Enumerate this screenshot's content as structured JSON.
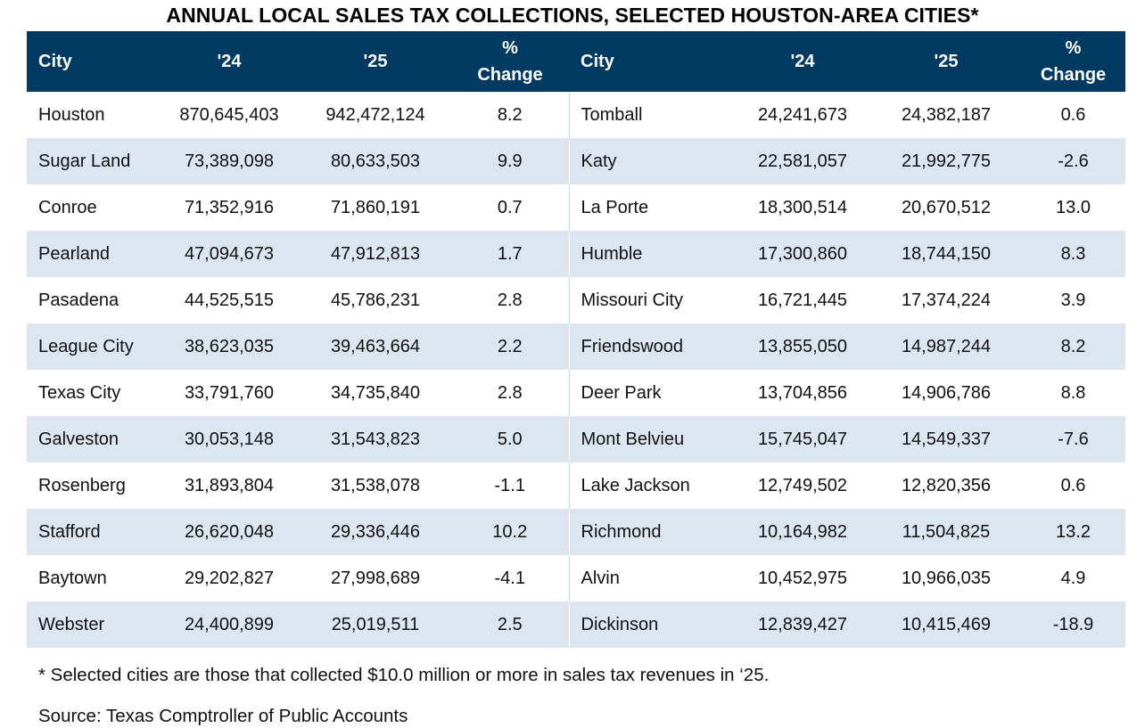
{
  "title": "ANNUAL LOCAL SALES TAX COLLECTIONS, SELECTED HOUSTON-AREA CITIES*",
  "headers": {
    "city": "City",
    "y24": "'24",
    "y25": "'25",
    "pct_line1": "%",
    "pct_line2": "Change"
  },
  "rows": [
    {
      "left": {
        "city": "Houston",
        "y24": "870,645,403",
        "y25": "942,472,124",
        "pct": "8.2"
      },
      "right": {
        "city": "Tomball",
        "y24": "24,241,673",
        "y25": "24,382,187",
        "pct": "0.6"
      }
    },
    {
      "left": {
        "city": "Sugar Land",
        "y24": "73,389,098",
        "y25": "80,633,503",
        "pct": "9.9"
      },
      "right": {
        "city": "Katy",
        "y24": "22,581,057",
        "y25": "21,992,775",
        "pct": "-2.6"
      }
    },
    {
      "left": {
        "city": "Conroe",
        "y24": "71,352,916",
        "y25": "71,860,191",
        "pct": "0.7"
      },
      "right": {
        "city": "La Porte",
        "y24": "18,300,514",
        "y25": "20,670,512",
        "pct": "13.0"
      }
    },
    {
      "left": {
        "city": "Pearland",
        "y24": "47,094,673",
        "y25": "47,912,813",
        "pct": "1.7"
      },
      "right": {
        "city": "Humble",
        "y24": "17,300,860",
        "y25": "18,744,150",
        "pct": "8.3"
      }
    },
    {
      "left": {
        "city": "Pasadena",
        "y24": "44,525,515",
        "y25": "45,786,231",
        "pct": "2.8"
      },
      "right": {
        "city": "Missouri City",
        "y24": "16,721,445",
        "y25": "17,374,224",
        "pct": "3.9"
      }
    },
    {
      "left": {
        "city": "League City",
        "y24": "38,623,035",
        "y25": "39,463,664",
        "pct": "2.2"
      },
      "right": {
        "city": "Friendswood",
        "y24": "13,855,050",
        "y25": "14,987,244",
        "pct": "8.2"
      }
    },
    {
      "left": {
        "city": "Texas City",
        "y24": "33,791,760",
        "y25": "34,735,840",
        "pct": "2.8"
      },
      "right": {
        "city": "Deer Park",
        "y24": "13,704,856",
        "y25": "14,906,786",
        "pct": "8.8"
      }
    },
    {
      "left": {
        "city": "Galveston",
        "y24": "30,053,148",
        "y25": "31,543,823",
        "pct": "5.0"
      },
      "right": {
        "city": "Mont Belvieu",
        "y24": "15,745,047",
        "y25": "14,549,337",
        "pct": "-7.6"
      }
    },
    {
      "left": {
        "city": "Rosenberg",
        "y24": "31,893,804",
        "y25": "31,538,078",
        "pct": "-1.1"
      },
      "right": {
        "city": "Lake Jackson",
        "y24": "12,749,502",
        "y25": "12,820,356",
        "pct": "0.6"
      }
    },
    {
      "left": {
        "city": "Stafford",
        "y24": "26,620,048",
        "y25": "29,336,446",
        "pct": "10.2"
      },
      "right": {
        "city": "Richmond",
        "y24": "10,164,982",
        "y25": "11,504,825",
        "pct": "13.2"
      }
    },
    {
      "left": {
        "city": "Baytown",
        "y24": "29,202,827",
        "y25": "27,998,689",
        "pct": "-4.1"
      },
      "right": {
        "city": "Alvin",
        "y24": "10,452,975",
        "y25": "10,966,035",
        "pct": "4.9"
      }
    },
    {
      "left": {
        "city": "Webster",
        "y24": "24,400,899",
        "y25": "25,019,511",
        "pct": "2.5"
      },
      "right": {
        "city": "Dickinson",
        "y24": "12,839,427",
        "y25": "10,415,469",
        "pct": "-18.9"
      }
    }
  ],
  "footnote": "* Selected cities are those that collected $10.0 million or more in sales tax revenues in ‘25.",
  "source": "Source: Texas Comptroller of Public Accounts",
  "colors": {
    "header_bg": "#003a63",
    "header_text": "#ffffff",
    "stripe": "#dce6f1"
  }
}
